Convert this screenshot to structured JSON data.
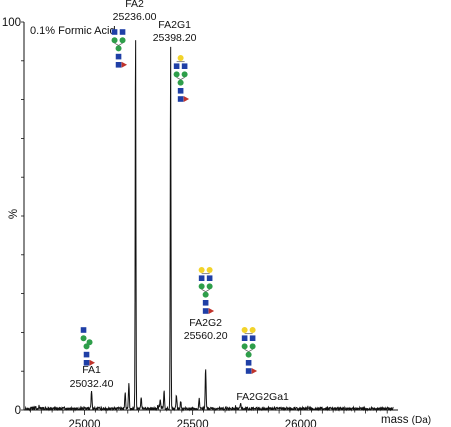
{
  "chart_data": {
    "type": "line",
    "title": "",
    "annotation": "0.1% Formic Acid",
    "xlabel": "mass",
    "xunit": "(Da)",
    "ylabel": "%",
    "xlim": [
      24720,
      26450
    ],
    "ylim": [
      0,
      100
    ],
    "xticks": [
      25000,
      25500,
      26000
    ],
    "yticks": [
      0,
      100
    ],
    "grid": false,
    "legend": "none",
    "colors": {
      "trace": "#111111",
      "glcnac": "#1f3fa6",
      "mannose": "#2e9e4a",
      "galactose": "#f2d32a",
      "fucose": "#c0332b"
    },
    "peaks": [
      {
        "x": 25032.4,
        "y": 4.6,
        "name": "FA1",
        "mass": "25032.40",
        "glycan": "FA1"
      },
      {
        "x": 25188,
        "y": 4.0
      },
      {
        "x": 25205,
        "y": 6.5
      },
      {
        "x": 25236.0,
        "y": 100,
        "name": "FA2",
        "mass": "25236.00",
        "glycan": "FA2"
      },
      {
        "x": 25262,
        "y": 3.0
      },
      {
        "x": 25350,
        "y": 2.5
      },
      {
        "x": 25368,
        "y": 4.5
      },
      {
        "x": 25398.2,
        "y": 95,
        "name": "FA2G1",
        "mass": "25398.20",
        "glycan": "FA2G1"
      },
      {
        "x": 25425,
        "y": 3.5
      },
      {
        "x": 25445,
        "y": 2.0
      },
      {
        "x": 25530,
        "y": 2.5
      },
      {
        "x": 25560.2,
        "y": 10.5,
        "name": "FA2G2",
        "mass": "25560.20",
        "glycan": "FA2G2"
      },
      {
        "x": 25722,
        "y": 1.5,
        "name": "FA2G2Ga1",
        "mass": "",
        "glycan": "FA2G2"
      }
    ]
  }
}
